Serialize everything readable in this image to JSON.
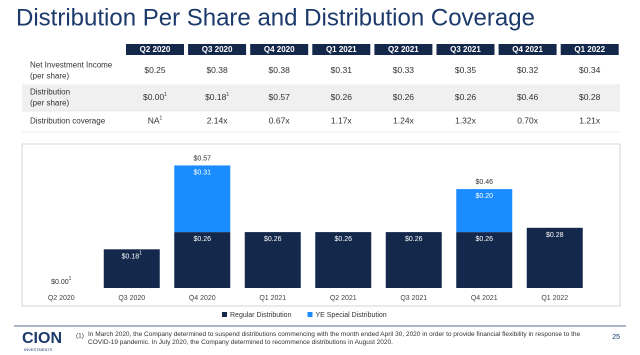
{
  "title": "Distribution Per Share and Distribution Coverage",
  "table": {
    "header": [
      "Q2 2020",
      "Q3 2020",
      "Q4 2020",
      "Q1 2021",
      "Q2 2021",
      "Q3 2021",
      "Q4 2021",
      "Q1 2022"
    ],
    "rows": [
      {
        "label": [
          "Net Investment Income",
          "(per share)"
        ],
        "cells": [
          {
            "text": "$0.25"
          },
          {
            "text": "$0.38"
          },
          {
            "text": "$0.38"
          },
          {
            "text": "$0.31"
          },
          {
            "text": "$0.33"
          },
          {
            "text": "$0.35"
          },
          {
            "text": "$0.32"
          },
          {
            "text": "$0.34"
          }
        ]
      },
      {
        "label": [
          "Distribution",
          "(per share)"
        ],
        "cells": [
          {
            "text": "$0.00",
            "note": "1"
          },
          {
            "text": "$0.18",
            "note": "1"
          },
          {
            "text": "$0.57"
          },
          {
            "text": "$0.26"
          },
          {
            "text": "$0.26"
          },
          {
            "text": "$0.26"
          },
          {
            "text": "$0.46"
          },
          {
            "text": "$0.28"
          }
        ]
      },
      {
        "label": [
          "Distribution coverage"
        ],
        "cells": [
          {
            "text": "NA",
            "note": "1"
          },
          {
            "text": "2.14x"
          },
          {
            "text": "0.67x"
          },
          {
            "text": "1.17x"
          },
          {
            "text": "1.24x"
          },
          {
            "text": "1.32x"
          },
          {
            "text": "0.70x"
          },
          {
            "text": "1.21x"
          }
        ]
      }
    ]
  },
  "chart_data": {
    "type": "stacked-bar",
    "categories": [
      "Q2 2020",
      "Q3 2020",
      "Q4 2020",
      "Q1 2021",
      "Q2 2021",
      "Q3 2021",
      "Q4 2021",
      "Q1 2022"
    ],
    "series": [
      {
        "name": "Regular Distribution",
        "color": "#14284b",
        "values": [
          0.0,
          0.18,
          0.26,
          0.26,
          0.26,
          0.26,
          0.26,
          0.28
        ],
        "value_labels": [
          "$0.00",
          "$0.18",
          "$0.26",
          "$0.26",
          "$0.26",
          "$0.26",
          "$0.26",
          "$0.28"
        ],
        "label_notes": [
          "1",
          "1",
          null,
          null,
          null,
          null,
          null,
          null
        ]
      },
      {
        "name": "YE Special Distribution",
        "color": "#1a8cff",
        "values": [
          null,
          null,
          0.31,
          null,
          null,
          null,
          0.2,
          null
        ],
        "value_labels": [
          null,
          null,
          "$0.31",
          null,
          null,
          null,
          "$0.20",
          null
        ]
      }
    ],
    "totals": {
      "values": [
        null,
        null,
        0.57,
        null,
        null,
        null,
        0.46,
        null
      ],
      "value_labels": [
        null,
        null,
        "$0.57",
        null,
        null,
        null,
        "$0.46",
        null
      ]
    },
    "ylim": [
      0,
      0.6
    ],
    "legend": "bottom"
  },
  "footer": {
    "logo": "CION",
    "logo_sub": "INVESTMENTS",
    "note_mark": "(1)",
    "note": "In March 2020, the Company determined to suspend distributions commencing with the month ended April 30, 2020 in order to provide financial flexibility in response to the COVID-19 pandemic. In July 2020, the Company determined to recommence distributions in August 2020.",
    "page": "25"
  }
}
